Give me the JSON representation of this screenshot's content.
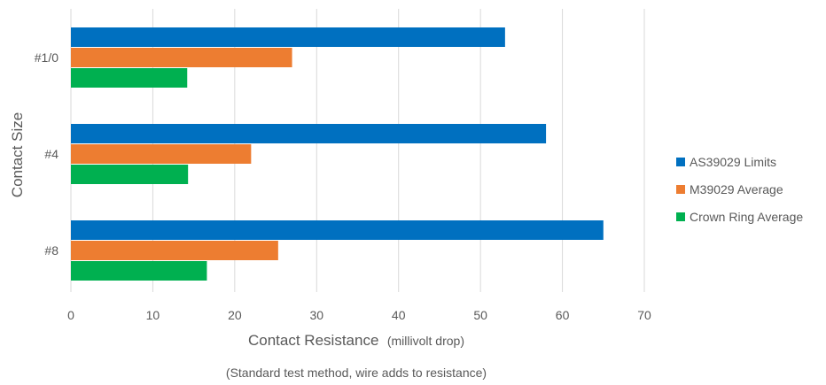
{
  "chart_data": {
    "type": "bar",
    "orientation": "horizontal",
    "categories": [
      "#1/0",
      "#4",
      "#8"
    ],
    "series": [
      {
        "name": "AS39029 Limits",
        "color": "#0070c0",
        "values": [
          53,
          58,
          65
        ]
      },
      {
        "name": "M39029 Average",
        "color": "#ed7d31",
        "values": [
          27,
          22,
          25.3
        ]
      },
      {
        "name": "Crown Ring Average",
        "color": "#00b050",
        "values": [
          14.2,
          14.3,
          16.6
        ]
      }
    ],
    "xlabel": "Contact Resistance",
    "xlabel_unit": "(millivolt drop)",
    "ylabel": "Contact Size",
    "note": "(Standard test method, wire adds to resistance)",
    "xlim": [
      0,
      70
    ],
    "xticks": [
      "0",
      "10",
      "20",
      "30",
      "40",
      "50",
      "60",
      "70"
    ],
    "grid": true,
    "legend_position": "right"
  }
}
